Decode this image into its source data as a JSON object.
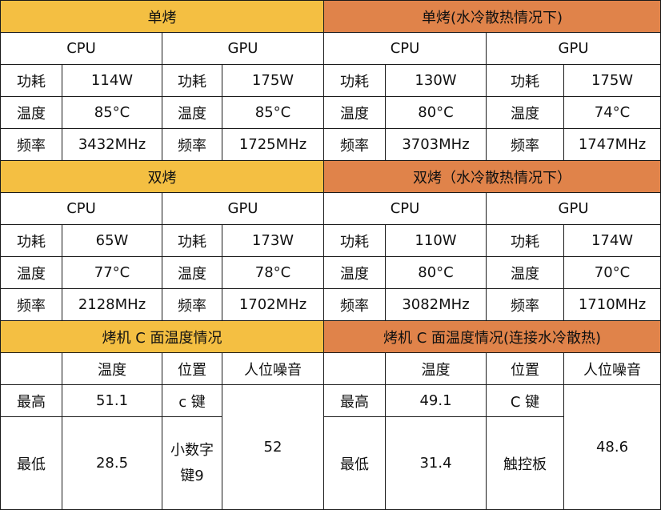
{
  "colors": {
    "header_left": "#f4bf42",
    "header_right": "#e0834a",
    "border": "#1a1a1a"
  },
  "labels": {
    "cpu": "CPU",
    "gpu": "GPU",
    "power": "功耗",
    "temp": "温度",
    "freq": "频率",
    "temperature": "温度",
    "position": "位置",
    "noise": "人位噪音",
    "max": "最高",
    "min": "最低"
  },
  "section1": {
    "left": {
      "title": "单烤",
      "cpu": {
        "power": "114W",
        "temp": "85°C",
        "freq": "3432MHz"
      },
      "gpu": {
        "power": "175W",
        "temp": "85°C",
        "freq": "1725MHz"
      }
    },
    "right": {
      "title": "单烤(水冷散热情况下)",
      "cpu": {
        "power": "130W",
        "temp": "80°C",
        "freq": "3703MHz"
      },
      "gpu": {
        "power": "175W",
        "temp": "74°C",
        "freq": "1747MHz"
      }
    }
  },
  "section2": {
    "left": {
      "title": "双烤",
      "cpu": {
        "power": "65W",
        "temp": "77°C",
        "freq": "2128MHz"
      },
      "gpu": {
        "power": "173W",
        "temp": "78°C",
        "freq": "1702MHz"
      }
    },
    "right": {
      "title": "双烤（水冷散热情况下）",
      "cpu": {
        "power": "110W",
        "temp": "80°C",
        "freq": "3082MHz"
      },
      "gpu": {
        "power": "174W",
        "temp": "70°C",
        "freq": "1710MHz"
      }
    }
  },
  "section3": {
    "left": {
      "title": "烤机 C 面温度情况",
      "max": {
        "temp": "51.1",
        "position": "c 键"
      },
      "min": {
        "temp": "28.5",
        "position": "小数字键9"
      },
      "noise": "52"
    },
    "right": {
      "title": "烤机 C 面温度情况(连接水冷散热)",
      "max": {
        "temp": "49.1",
        "position": "C 键"
      },
      "min": {
        "temp": "31.4",
        "position": "触控板"
      },
      "noise": "48.6"
    }
  }
}
